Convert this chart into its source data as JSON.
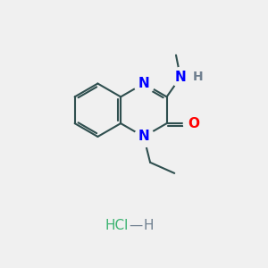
{
  "background_color": "#F0F0F0",
  "bond_color": "#2F4F4F",
  "N_color": "#0000FF",
  "O_color": "#FF0000",
  "H_color": "#708090",
  "C_color": "#2F4F4F",
  "HCl_Cl_color": "#3CB371",
  "HCl_H_color": "#5F9EA0",
  "bond_width": 1.5,
  "font_size_atom": 11,
  "figsize": [
    3.0,
    3.0
  ],
  "dpi": 100,
  "xlim": [
    0,
    10
  ],
  "ylim": [
    0,
    10
  ]
}
